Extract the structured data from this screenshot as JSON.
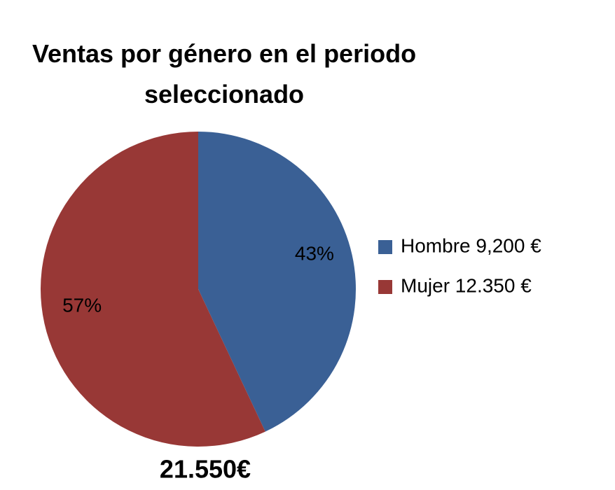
{
  "chart_data": {
    "type": "pie",
    "title": "Ventas por género en el periodo seleccionado",
    "categories": [
      "Hombre 9,200 €",
      "Mujer 12.350 €"
    ],
    "values": [
      43,
      57
    ],
    "value_labels": [
      "43%",
      "57%"
    ],
    "colors": [
      "#3a6095",
      "#983836"
    ],
    "annotations": [
      "21.550€"
    ]
  }
}
